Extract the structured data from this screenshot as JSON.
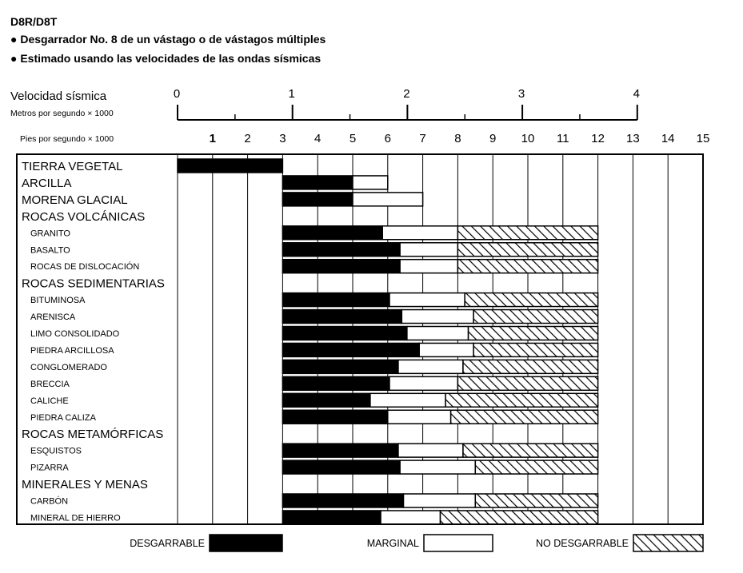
{
  "header": {
    "model": "D8R/D8T",
    "bullet1": "● Desgarrador No. 8 de un vástago o de vástagos múltiples",
    "bullet2": "● Estimado usando las velocidades de las ondas sísmicas"
  },
  "chart_data": {
    "type": "bar",
    "stacked": true,
    "orientation": "horizontal",
    "title": "D8R/D8T",
    "axes": {
      "meters": {
        "label": "Velocidad sísmica",
        "sublabel": "Metros por segundo × 1000",
        "ticks": [
          "0",
          "1",
          "2",
          "3",
          "4"
        ],
        "range": [
          0,
          4
        ]
      },
      "feet": {
        "label": "Pies por segundo × 1000",
        "ticks": [
          "1",
          "2",
          "3",
          "4",
          "5",
          "6",
          "7",
          "8",
          "9",
          "10",
          "11",
          "12",
          "13",
          "14",
          "15"
        ],
        "range": [
          0,
          15
        ]
      }
    },
    "legend": [
      {
        "key": "rippable",
        "label": "DESGARRABLE",
        "fill": "#000000"
      },
      {
        "key": "marginal",
        "label": "MARGINAL",
        "fill": "#ffffff"
      },
      {
        "key": "nonrippable",
        "label": "NO DESGARRABLE",
        "fill": "hatch"
      }
    ],
    "rows": [
      {
        "label": "TIERRA VEGETAL",
        "kind": "category",
        "segments": [
          [
            0,
            3,
            "rippable"
          ]
        ]
      },
      {
        "label": "ARCILLA",
        "kind": "category",
        "segments": [
          [
            3,
            5,
            "rippable"
          ],
          [
            5,
            6,
            "marginal"
          ]
        ]
      },
      {
        "label": "MORENA GLACIAL",
        "kind": "category",
        "segments": [
          [
            3,
            5,
            "rippable"
          ],
          [
            5,
            7,
            "marginal"
          ]
        ]
      },
      {
        "label": "ROCAS VOLCÁNICAS",
        "kind": "category",
        "segments": []
      },
      {
        "label": "GRANITO",
        "kind": "sub",
        "segments": [
          [
            3,
            5.85,
            "rippable"
          ],
          [
            5.85,
            8,
            "marginal"
          ],
          [
            8,
            12,
            "nonrippable"
          ]
        ]
      },
      {
        "label": "BASALTO",
        "kind": "sub",
        "segments": [
          [
            3,
            6.35,
            "rippable"
          ],
          [
            6.35,
            8,
            "marginal"
          ],
          [
            8,
            12,
            "nonrippable"
          ]
        ]
      },
      {
        "label": "ROCAS DE DISLOCACIÓN",
        "kind": "sub",
        "segments": [
          [
            3,
            6.35,
            "rippable"
          ],
          [
            6.35,
            8,
            "marginal"
          ],
          [
            8,
            12,
            "nonrippable"
          ]
        ]
      },
      {
        "label": "ROCAS SEDIMENTARIAS",
        "kind": "category",
        "segments": []
      },
      {
        "label": "BITUMINOSA",
        "kind": "sub",
        "segments": [
          [
            3,
            6.05,
            "rippable"
          ],
          [
            6.05,
            8.2,
            "marginal"
          ],
          [
            8.2,
            12,
            "nonrippable"
          ]
        ]
      },
      {
        "label": "ARENISCA",
        "kind": "sub",
        "segments": [
          [
            3,
            6.4,
            "rippable"
          ],
          [
            6.4,
            8.45,
            "marginal"
          ],
          [
            8.45,
            12,
            "nonrippable"
          ]
        ]
      },
      {
        "label": "LIMO CONSOLIDADO",
        "kind": "sub",
        "segments": [
          [
            3,
            6.55,
            "rippable"
          ],
          [
            6.55,
            8.3,
            "marginal"
          ],
          [
            8.3,
            12,
            "nonrippable"
          ]
        ]
      },
      {
        "label": "PIEDRA ARCILLOSA",
        "kind": "sub",
        "segments": [
          [
            3,
            6.9,
            "rippable"
          ],
          [
            6.9,
            8.45,
            "marginal"
          ],
          [
            8.45,
            12,
            "nonrippable"
          ]
        ]
      },
      {
        "label": "CONGLOMERADO",
        "kind": "sub",
        "segments": [
          [
            3,
            6.3,
            "rippable"
          ],
          [
            6.3,
            8.15,
            "marginal"
          ],
          [
            8.15,
            12,
            "nonrippable"
          ]
        ]
      },
      {
        "label": "BRECCIA",
        "kind": "sub",
        "segments": [
          [
            3,
            6.05,
            "rippable"
          ],
          [
            6.05,
            8,
            "marginal"
          ],
          [
            8,
            12,
            "nonrippable"
          ]
        ]
      },
      {
        "label": "CALICHE",
        "kind": "sub",
        "segments": [
          [
            3,
            5.5,
            "rippable"
          ],
          [
            5.5,
            7.65,
            "marginal"
          ],
          [
            7.65,
            12,
            "nonrippable"
          ]
        ]
      },
      {
        "label": "PIEDRA CALIZA",
        "kind": "sub",
        "segments": [
          [
            3,
            6.0,
            "rippable"
          ],
          [
            6.0,
            7.8,
            "marginal"
          ],
          [
            7.8,
            12,
            "nonrippable"
          ]
        ]
      },
      {
        "label": "ROCAS METAMÓRFICAS",
        "kind": "category",
        "segments": []
      },
      {
        "label": "ESQUISTOS",
        "kind": "sub",
        "segments": [
          [
            3,
            6.3,
            "rippable"
          ],
          [
            6.3,
            8.15,
            "marginal"
          ],
          [
            8.15,
            12,
            "nonrippable"
          ]
        ]
      },
      {
        "label": "PIZARRA",
        "kind": "sub",
        "segments": [
          [
            3,
            6.35,
            "rippable"
          ],
          [
            6.35,
            8.5,
            "marginal"
          ],
          [
            8.5,
            12,
            "nonrippable"
          ]
        ]
      },
      {
        "label": "MINERALES Y MENAS",
        "kind": "category",
        "segments": []
      },
      {
        "label": "CARBÓN",
        "kind": "sub",
        "segments": [
          [
            3,
            6.45,
            "rippable"
          ],
          [
            6.45,
            8.5,
            "marginal"
          ],
          [
            8.5,
            12,
            "nonrippable"
          ]
        ]
      },
      {
        "label": "MINERAL DE HIERRO",
        "kind": "sub",
        "segments": [
          [
            3,
            5.8,
            "rippable"
          ],
          [
            5.8,
            7.5,
            "marginal"
          ],
          [
            7.5,
            12,
            "nonrippable"
          ]
        ]
      }
    ]
  }
}
